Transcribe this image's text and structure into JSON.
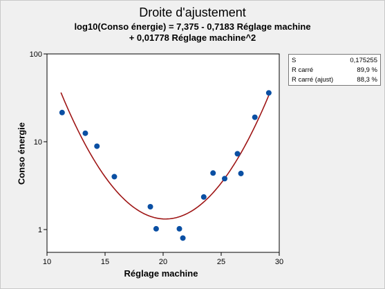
{
  "chart_data": {
    "type": "scatter",
    "title": "Droite d'ajustement",
    "subtitle_line1": "log10(Conso énergie) = 7,375 - 0,7183 Réglage machine",
    "subtitle_line2": "+ 0,01778 Réglage machine^2",
    "xlabel": "Réglage machine",
    "ylabel": "Conso énergie",
    "xlim": [
      10,
      30
    ],
    "ylim": [
      0.55,
      100
    ],
    "y_scale": "log",
    "x_ticks": [
      {
        "value": 10,
        "label": "10"
      },
      {
        "value": 15,
        "label": "15"
      },
      {
        "value": 20,
        "label": "20"
      },
      {
        "value": 25,
        "label": "25"
      },
      {
        "value": 30,
        "label": "30"
      }
    ],
    "y_ticks": [
      {
        "value": 1,
        "label": "1"
      },
      {
        "value": 10,
        "label": "10"
      },
      {
        "value": 100,
        "label": "100"
      }
    ],
    "points": {
      "x": [
        11.3,
        13.3,
        14.3,
        15.8,
        18.9,
        19.4,
        21.4,
        21.7,
        23.5,
        24.3,
        25.3,
        26.4,
        26.7,
        27.9,
        29.1
      ],
      "y": [
        21.5,
        12.5,
        8.9,
        4.0,
        1.82,
        1.02,
        1.02,
        0.8,
        2.35,
        4.4,
        3.8,
        7.3,
        4.35,
        19.0,
        36.0
      ]
    },
    "fit": {
      "intercept": 7.375,
      "b1": -0.7183,
      "b2": 0.01778,
      "x_from": 11.2,
      "x_to": 29.1
    },
    "colors": {
      "points": "#0a4fa3",
      "fit": "#9e1414",
      "frame": "#000000"
    },
    "grid": false,
    "stats": [
      {
        "label": "S",
        "value": "0,175255"
      },
      {
        "label": "R carré",
        "value": "89,9 %"
      },
      {
        "label": "R carré (ajust)",
        "value": "88,3 %"
      }
    ]
  }
}
